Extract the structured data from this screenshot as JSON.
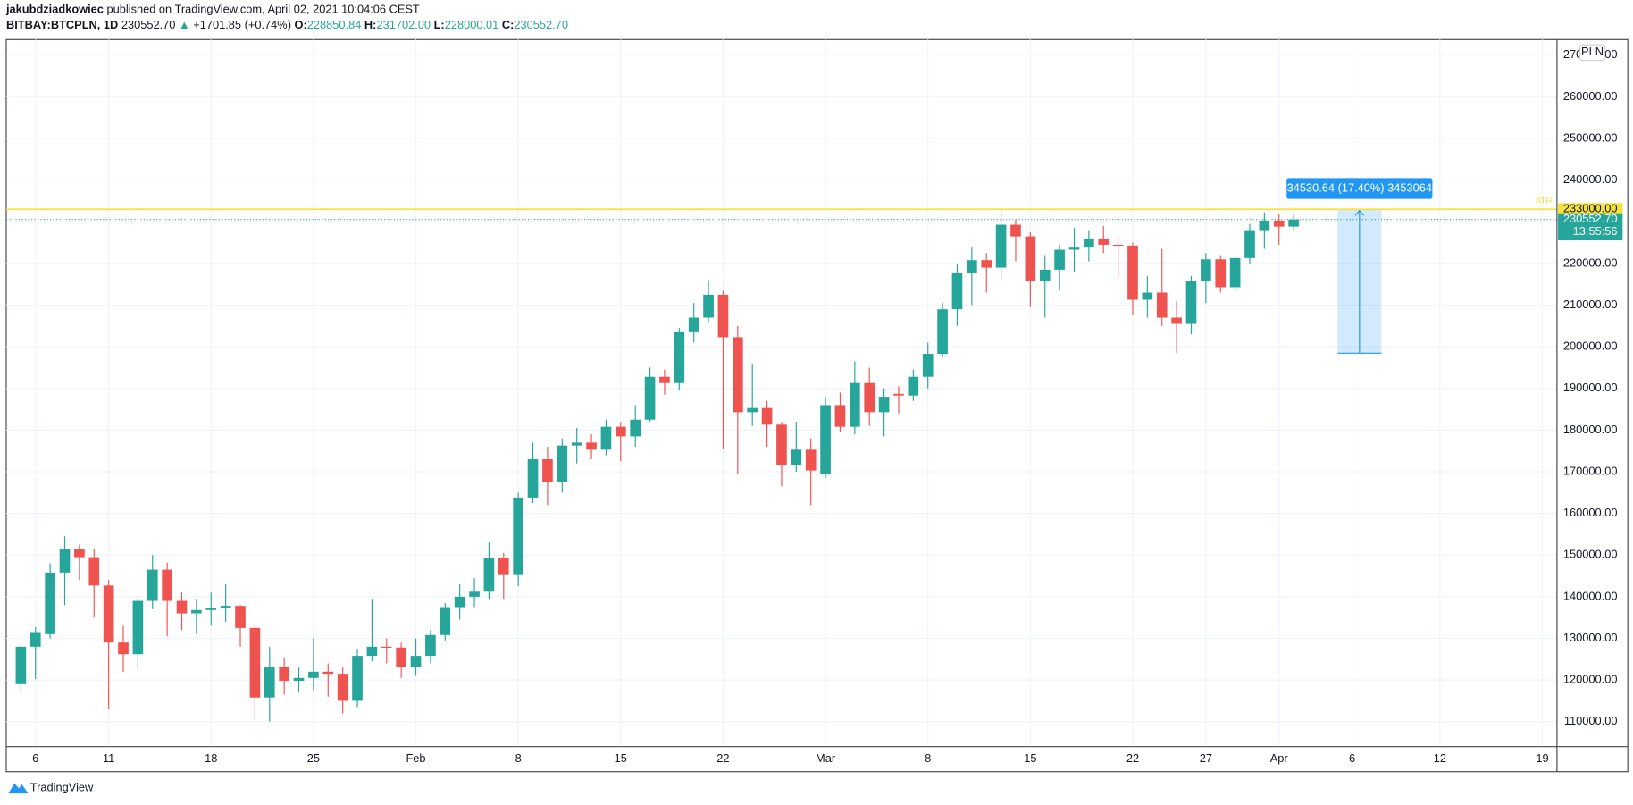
{
  "header": {
    "author": "jakubdziadkowiec",
    "published": "published on TradingView.com, April 02, 2021 10:04:06 CEST",
    "symbol": "BITBAY:BTCPLN, 1D",
    "last": "230552.70",
    "arrow": "▲",
    "change": "+1701.85 (+0.74%)",
    "o_label": "O:",
    "o": "228850.84",
    "h_label": "H:",
    "h": "231702.00",
    "l_label": "L:",
    "l": "228000.01",
    "c_label": "C:",
    "c": "230552.70"
  },
  "footer": {
    "brand": "TradingView"
  },
  "chart_data": {
    "type": "candlestick",
    "currency": "PLN",
    "up_color": "#26a69a",
    "down_color": "#ef5350",
    "grid": true,
    "x": [
      "2021-01-05",
      "2021-01-06",
      "2021-01-07",
      "2021-01-08",
      "2021-01-09",
      "2021-01-10",
      "2021-01-11",
      "2021-01-12",
      "2021-01-13",
      "2021-01-14",
      "2021-01-15",
      "2021-01-16",
      "2021-01-17",
      "2021-01-18",
      "2021-01-19",
      "2021-01-20",
      "2021-01-21",
      "2021-01-22",
      "2021-01-23",
      "2021-01-24",
      "2021-01-25",
      "2021-01-26",
      "2021-01-27",
      "2021-01-28",
      "2021-01-29",
      "2021-01-30",
      "2021-01-31",
      "2021-02-01",
      "2021-02-02",
      "2021-02-03",
      "2021-02-04",
      "2021-02-05",
      "2021-02-06",
      "2021-02-07",
      "2021-02-08",
      "2021-02-09",
      "2021-02-10",
      "2021-02-11",
      "2021-02-12",
      "2021-02-13",
      "2021-02-14",
      "2021-02-15",
      "2021-02-16",
      "2021-02-17",
      "2021-02-18",
      "2021-02-19",
      "2021-02-20",
      "2021-02-21",
      "2021-02-22",
      "2021-02-23",
      "2021-02-24",
      "2021-02-25",
      "2021-02-26",
      "2021-02-27",
      "2021-02-28",
      "2021-03-01",
      "2021-03-02",
      "2021-03-03",
      "2021-03-04",
      "2021-03-05",
      "2021-03-06",
      "2021-03-07",
      "2021-03-08",
      "2021-03-09",
      "2021-03-10",
      "2021-03-11",
      "2021-03-12",
      "2021-03-13",
      "2021-03-14",
      "2021-03-15",
      "2021-03-16",
      "2021-03-17",
      "2021-03-18",
      "2021-03-19",
      "2021-03-20",
      "2021-03-21",
      "2021-03-22",
      "2021-03-23",
      "2021-03-24",
      "2021-03-25",
      "2021-03-26",
      "2021-03-27",
      "2021-03-28",
      "2021-03-29",
      "2021-03-30",
      "2021-03-31",
      "2021-04-01",
      "2021-04-02"
    ],
    "open": [
      119000,
      128000,
      131000,
      145800,
      151500,
      149500,
      142700,
      129000,
      126200,
      139000,
      146500,
      139000,
      136000,
      136800,
      137400,
      137800,
      132500,
      115800,
      123200,
      119800,
      120500,
      122000,
      121500,
      115000,
      125800,
      128000,
      127800,
      123200,
      125800,
      130800,
      137500,
      140000,
      141200,
      149200,
      145200,
      163800,
      173000,
      167500,
      176300,
      177000,
      175300,
      180800,
      178500,
      182500,
      192800,
      191300,
      203500,
      207000,
      212500,
      202300,
      184300,
      185300,
      181300,
      171700,
      175300,
      169500,
      186000,
      180800,
      191300,
      184300,
      188700,
      188300,
      192800,
      198300,
      209000,
      217800,
      220800,
      219000,
      229300,
      226500,
      215800,
      218500,
      223300,
      223800,
      226000,
      224500,
      224300,
      211300,
      213000,
      207000,
      205500,
      215800,
      221000,
      214300,
      221300,
      228000,
      230300,
      228850.84
    ],
    "high": [
      128500,
      132700,
      148000,
      154500,
      152500,
      151500,
      144000,
      133000,
      140000,
      150000,
      148200,
      141000,
      139500,
      141000,
      143000,
      138000,
      133500,
      128000,
      125500,
      123000,
      130000,
      124000,
      123000,
      127500,
      139500,
      130000,
      129000,
      130000,
      132000,
      138500,
      143000,
      144500,
      153000,
      150500,
      165000,
      177000,
      176000,
      178000,
      180500,
      179000,
      182500,
      182000,
      186000,
      195000,
      194500,
      204500,
      210500,
      216000,
      213500,
      205000,
      196000,
      187000,
      182000,
      182000,
      178000,
      188000,
      189000,
      196500,
      195000,
      190000,
      190500,
      194500,
      201000,
      210500,
      220000,
      224000,
      222500,
      232700,
      230500,
      227500,
      222000,
      224500,
      228500,
      228000,
      229000,
      226500,
      225000,
      217000,
      223500,
      211000,
      217000,
      222500,
      222000,
      222000,
      229500,
      232300,
      231800,
      231702
    ],
    "low": [
      117000,
      120200,
      130000,
      138000,
      144000,
      135000,
      113000,
      122000,
      122500,
      137000,
      130500,
      132000,
      131000,
      133000,
      134000,
      128000,
      110500,
      110000,
      116500,
      117000,
      117500,
      116000,
      112000,
      113500,
      124500,
      124000,
      120500,
      121000,
      124000,
      129500,
      134500,
      137500,
      139500,
      139500,
      142500,
      162500,
      162000,
      165000,
      172000,
      173000,
      174000,
      172500,
      176000,
      182000,
      188500,
      189500,
      201000,
      206000,
      175500,
      169500,
      181000,
      176000,
      166500,
      170000,
      162000,
      168500,
      179500,
      179000,
      181000,
      178500,
      184000,
      187000,
      190000,
      197500,
      205000,
      210000,
      213000,
      216000,
      220500,
      209500,
      207000,
      213500,
      218000,
      220500,
      222500,
      216500,
      207500,
      207000,
      205000,
      198500,
      203000,
      210500,
      213000,
      213500,
      220000,
      223500,
      224500,
      228000.01
    ],
    "close": [
      128000,
      131500,
      145800,
      151500,
      149500,
      142700,
      129000,
      126200,
      139000,
      146500,
      139000,
      136000,
      136800,
      137400,
      137800,
      132500,
      115800,
      123200,
      119800,
      120500,
      122000,
      121500,
      115000,
      125800,
      128000,
      127800,
      123200,
      125800,
      130800,
      137500,
      140000,
      141200,
      149200,
      145200,
      163800,
      173000,
      167500,
      176300,
      177000,
      175300,
      180800,
      178500,
      182500,
      192800,
      191300,
      203500,
      207000,
      212500,
      202300,
      184300,
      185300,
      181300,
      171700,
      175300,
      170300,
      186000,
      180800,
      191300,
      184300,
      188000,
      188300,
      192800,
      198300,
      209000,
      217800,
      220800,
      219000,
      229300,
      226500,
      215800,
      218500,
      223300,
      223800,
      226000,
      224500,
      224300,
      211300,
      213000,
      207000,
      205500,
      215800,
      221000,
      214300,
      221300,
      228000,
      230300,
      228850.84,
      230552.7
    ],
    "xlim": [
      "2021-01-04",
      "2021-04-20"
    ],
    "xticks": [
      {
        "value": "2021-01-06",
        "label": "6"
      },
      {
        "value": "2021-01-11",
        "label": "11"
      },
      {
        "value": "2021-01-18",
        "label": "18"
      },
      {
        "value": "2021-01-25",
        "label": "25"
      },
      {
        "value": "2021-02-01",
        "label": "Feb"
      },
      {
        "value": "2021-02-08",
        "label": "8"
      },
      {
        "value": "2021-02-15",
        "label": "15"
      },
      {
        "value": "2021-02-22",
        "label": "22"
      },
      {
        "value": "2021-03-01",
        "label": "Mar"
      },
      {
        "value": "2021-03-08",
        "label": "8"
      },
      {
        "value": "2021-03-15",
        "label": "15"
      },
      {
        "value": "2021-03-22",
        "label": "22"
      },
      {
        "value": "2021-03-27",
        "label": "27"
      },
      {
        "value": "2021-04-01",
        "label": "Apr"
      },
      {
        "value": "2021-04-06",
        "label": "6"
      },
      {
        "value": "2021-04-12",
        "label": "12"
      },
      {
        "value": "2021-04-19",
        "label": "19"
      }
    ],
    "ylim": [
      104000,
      273750
    ],
    "yticks": [
      {
        "value": 110000,
        "label": "110000.00"
      },
      {
        "value": 120000,
        "label": "120000.00"
      },
      {
        "value": 130000,
        "label": "130000.00"
      },
      {
        "value": 140000,
        "label": "140000.00"
      },
      {
        "value": 150000,
        "label": "150000.00"
      },
      {
        "value": 160000,
        "label": "160000.00"
      },
      {
        "value": 170000,
        "label": "170000.00"
      },
      {
        "value": 180000,
        "label": "180000.00"
      },
      {
        "value": 190000,
        "label": "190000.00"
      },
      {
        "value": 200000,
        "label": "200000.00"
      },
      {
        "value": 210000,
        "label": "210000.00"
      },
      {
        "value": 220000,
        "label": "220000.00"
      },
      {
        "value": 230000,
        "label": "230000.00"
      },
      {
        "value": 240000,
        "label": "240000.00"
      },
      {
        "value": 250000,
        "label": "250000.00"
      },
      {
        "value": 260000,
        "label": "260000.00"
      },
      {
        "value": 270000,
        "label": "270000.00"
      }
    ],
    "ath_line": {
      "name": "ATH",
      "value": 233000,
      "label": "233000.00",
      "color": "#f7e13a"
    },
    "last_price": {
      "value": 230552.7,
      "label": "230552.70",
      "countdown": "13:55:56",
      "color": "#26a69a"
    },
    "measure": {
      "from_value": 198469.36,
      "to_value": 233000,
      "x_from": "2021-04-05",
      "x_to": "2021-04-08",
      "label": "34530.64 (17.40%) 3453064",
      "color": "#2196f3"
    }
  }
}
